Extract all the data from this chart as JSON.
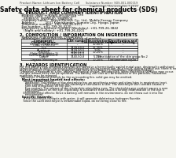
{
  "bg_color": "#f5f5f0",
  "header_left": "Product Name: Lithium Ion Battery Cell",
  "header_right": "Substance Number: SDS-001-000019\nEstablished / Revision: Dec.7.2019",
  "title": "Safety data sheet for chemical products (SDS)",
  "section1_title": "1. PRODUCT AND COMPANY IDENTIFICATION",
  "section1_lines": [
    "  Product name: Lithium Ion Battery Cell",
    "  Product code: Cylindrical-type cell",
    "    SNI88500, SNI88500, SNI88504",
    "  Company name:   Sanyo Electric Co., Ltd., Mobile Energy Company",
    "  Address:          2001 Kamishinden, Sumoto City, Hyogo, Japan",
    "  Telephone number:  +81-799-26-4111",
    "  Fax number:  +81-799-26-4120",
    "  Emergency telephone number (Weekday): +81-799-26-3842",
    "    (Night and holiday): +81-799-26-4101"
  ],
  "section2_title": "2. COMPOSITION / INFORMATION ON INGREDIENTS",
  "section2_intro": "  Substance or preparation: Preparation",
  "section2_sub": "  Information about the chemical nature of product:",
  "table_headers": [
    "Component /",
    "CAS number",
    "Concentration /",
    "Classification and"
  ],
  "table_headers2": [
    "Chemical name",
    "",
    "Concentration range",
    "hazard labeling"
  ],
  "table_rows": [
    [
      "Lithium cobalt oxide\n(LiMn-Co-NiO2x)",
      "-",
      "30-60%",
      "-"
    ],
    [
      "Iron",
      "7439-89-6",
      "15-25%",
      "-"
    ],
    [
      "Aluminum",
      "7429-90-5",
      "2-6%",
      "-"
    ],
    [
      "Graphite\n(flake or graphite-1)\n(artificial graphite-1)",
      "7782-42-5\n7782-42-5",
      "10-25%",
      "-"
    ],
    [
      "Copper",
      "7440-50-8",
      "5-15%",
      "Sensitization of the skin group No.2"
    ],
    [
      "Organic electrolyte",
      "-",
      "10-20%",
      "Inflammable liquid"
    ]
  ],
  "section3_title": "3. HAZARDS IDENTIFICATION",
  "section3_text": "For this battery cell, chemical materials are stored in a hermetically sealed metal case, designed to withstand\ntemperatures at which electrolyte decomposition during normal use. As a result, during normal use, there is no\nphysical danger of ignition or explosion and there is no danger of hazardous materials leakage.\n  However, if exposed to a fire, added mechanical shocks, decomposed, when electrolyte stimulus may occur.\nthe gas release valve can be operated. The battery cell case will be breached or the particles, hazardous\nmaterials may be released.\n  Moreover, if heated strongly by the surrounding fire, solid gas may be emitted.",
  "section3_sub1": "  Most important hazard and effects:",
  "section3_sub1_text": "    Human health effects:\n      Inhalation: The release of the electrolyte has an anesthesia action and stimulates in respiratory tract.\n      Skin contact: The release of the electrolyte stimulates a skin. The electrolyte skin contact causes a\n      sore and stimulation on the skin.\n      Eye contact: The release of the electrolyte stimulates eyes. The electrolyte eye contact causes a sore\n      and stimulation on the eye. Especially, a substance that causes a strong inflammation of the eye is\n      contained.\n    Environmental effects: Since a battery cell remains in the environment, do not throw out it into the\n      environment.",
  "section3_sub2": "  Specific hazards:",
  "section3_sub2_text": "    If the electrolyte contacts with water, it will generate deleterious hydrogen fluoride.\n    Since the used electrolyte is inflammable liquid, do not bring close to fire."
}
